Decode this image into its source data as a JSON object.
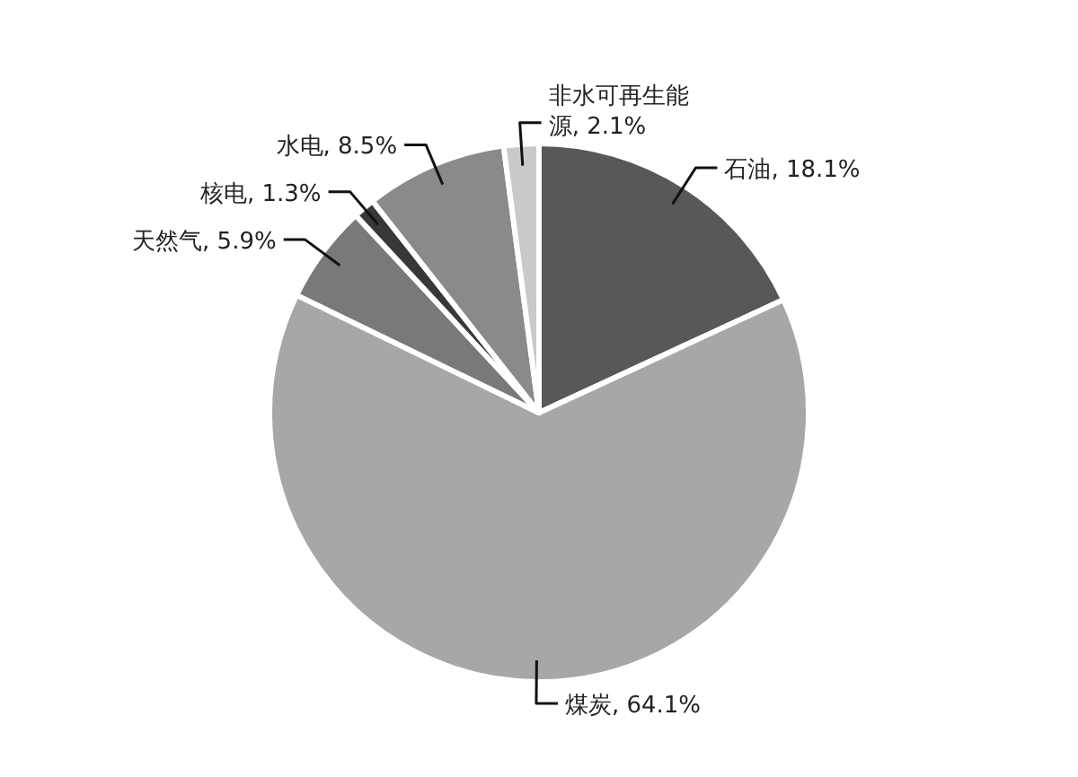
{
  "chart_data": {
    "type": "pie",
    "categories": [
      "石油",
      "煤炭",
      "天然气",
      "核电",
      "水电",
      "非水可再生能源"
    ],
    "values": [
      18.1,
      64.1,
      5.9,
      1.3,
      8.5,
      2.1
    ],
    "value_labels": [
      "18.1%",
      "64.1%",
      "5.9%",
      "1.3%",
      "8.5%",
      "2.1%"
    ],
    "colors": [
      "#58575a",
      "#a7a6a9",
      "#79787b",
      "#38373a",
      "#8a898c",
      "#c9c8cb"
    ]
  }
}
